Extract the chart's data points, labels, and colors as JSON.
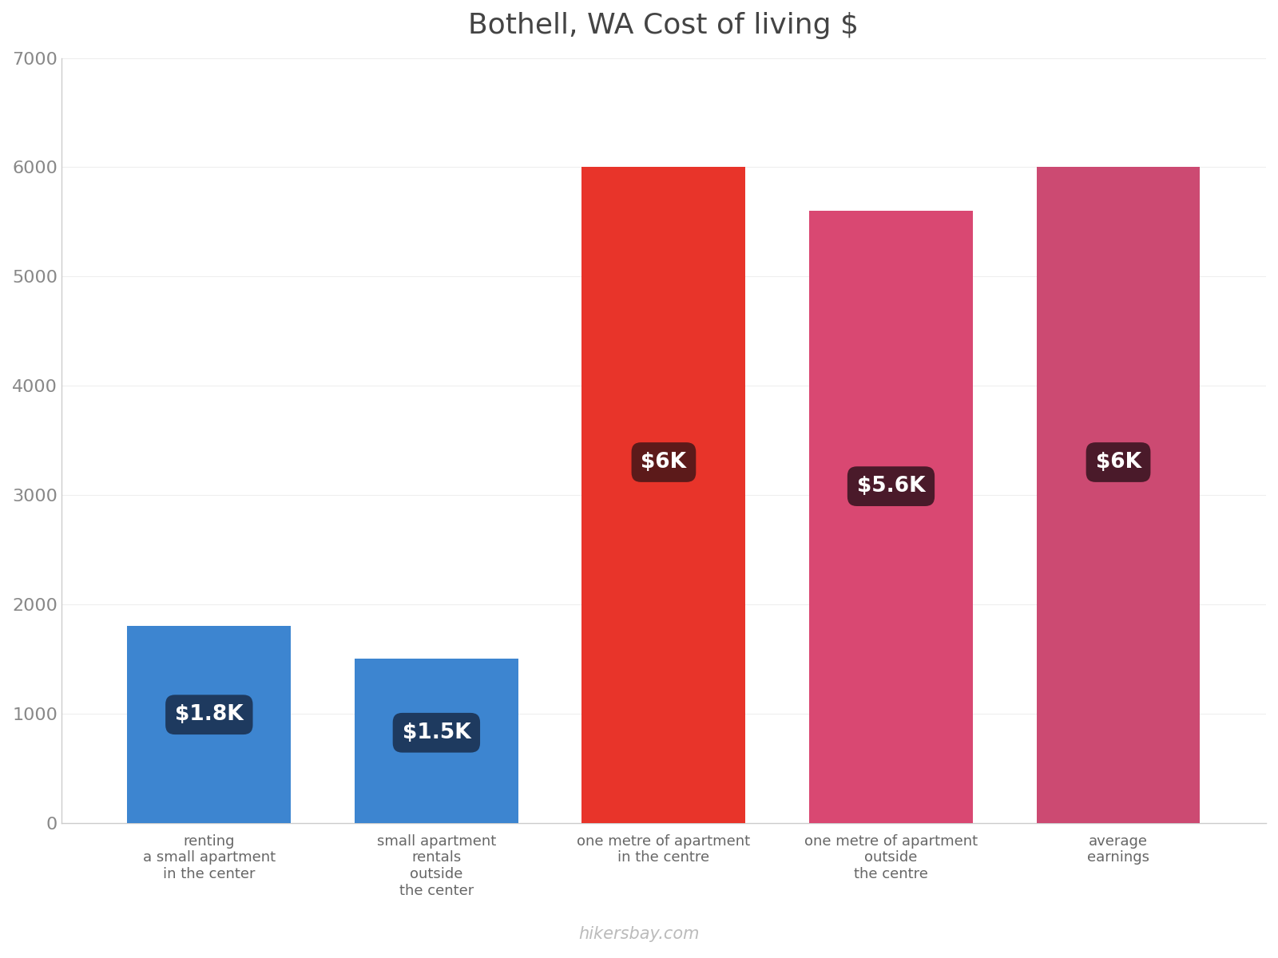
{
  "title": "Bothell, WA Cost of living $",
  "categories": [
    "renting\na small apartment\nin the center",
    "small apartment\nrentals\noutside\nthe center",
    "one metre of apartment\nin the centre",
    "one metre of apartment\noutside\nthe centre",
    "average\nearnings"
  ],
  "values": [
    1800,
    1500,
    6000,
    5600,
    6000
  ],
  "bar_colors": [
    "#3d85d0",
    "#3d85d0",
    "#e8342a",
    "#d94872",
    "#cc4a72"
  ],
  "label_texts": [
    "$1.8K",
    "$1.5K",
    "$6K",
    "$5.6K",
    "$6K"
  ],
  "label_box_colors": [
    "#1e3a5f",
    "#1e3a5f",
    "#5c1a1a",
    "#4a1a2a",
    "#4a1a2a"
  ],
  "ylim": [
    0,
    7000
  ],
  "yticks": [
    0,
    1000,
    2000,
    3000,
    4000,
    5000,
    6000,
    7000
  ],
  "title_fontsize": 26,
  "tick_fontsize": 16,
  "xlabel_fontsize": 13,
  "watermark": "hikersbay.com",
  "background_color": "#ffffff",
  "label_text_color": "#ffffff",
  "label_fontsize": 19
}
